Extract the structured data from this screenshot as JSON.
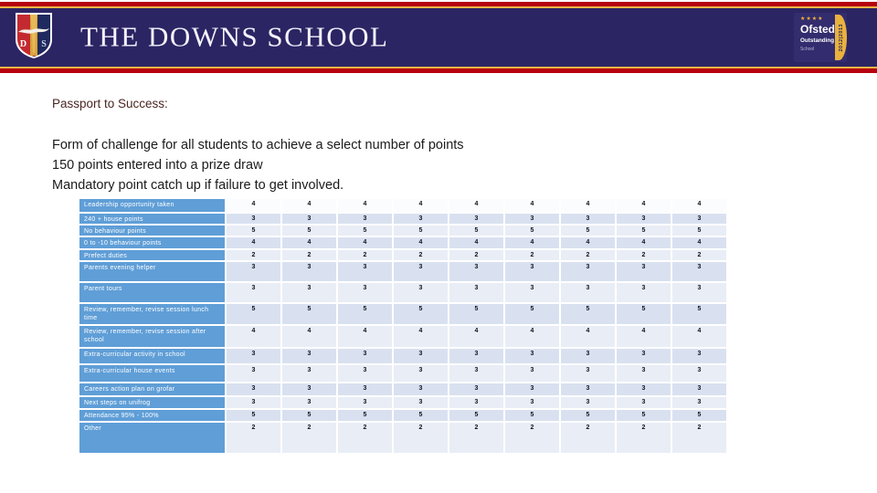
{
  "banner": {
    "school_name": "THE DOWNS SCHOOL",
    "crest": {
      "left_letter": "D",
      "right_letter": "S"
    },
    "ofsted": {
      "stars": "★★★★",
      "line1": "Ofsted",
      "line2": "Outstanding",
      "line3": "School",
      "years": "2012|2013"
    }
  },
  "colors": {
    "banner_navy": "#2b2563",
    "banner_red": "#b6000f",
    "banner_gold": "#e9b545",
    "title_maroon": "#4a2620",
    "table_label_blue": "#5f9ed7",
    "band_dark": "#d9e1f0",
    "band_light": "#e9edf6"
  },
  "content": {
    "title": "Passport to Success:",
    "lines": [
      "Form of challenge for all students to achieve a select number of points",
      "150 points entered into a prize draw",
      "Mandatory point catch up if failure to get involved."
    ]
  },
  "table": {
    "column_count": 9,
    "rows": [
      {
        "label": "Leadership opportunity taken",
        "values": [
          4,
          4,
          4,
          4,
          4,
          4,
          4,
          4,
          4
        ]
      },
      {
        "label": "240 + house points",
        "values": [
          3,
          3,
          3,
          3,
          3,
          3,
          3,
          3,
          3
        ]
      },
      {
        "label": "No behaviour points",
        "values": [
          5,
          5,
          5,
          5,
          5,
          5,
          5,
          5,
          5
        ]
      },
      {
        "label": "0 to -10 behaviour points",
        "values": [
          4,
          4,
          4,
          4,
          4,
          4,
          4,
          4,
          4
        ]
      },
      {
        "label": "Prefect duties",
        "values": [
          2,
          2,
          2,
          2,
          2,
          2,
          2,
          2,
          2
        ]
      },
      {
        "label": "Parents evening helper",
        "values": [
          3,
          3,
          3,
          3,
          3,
          3,
          3,
          3,
          3
        ]
      },
      {
        "label": "Parent tours",
        "values": [
          3,
          3,
          3,
          3,
          3,
          3,
          3,
          3,
          3
        ]
      },
      {
        "label": "Review, remember, revise session lunch time",
        "values": [
          5,
          5,
          5,
          5,
          5,
          5,
          5,
          5,
          5
        ]
      },
      {
        "label": "Review, remember, revise session after school",
        "values": [
          4,
          4,
          4,
          4,
          4,
          4,
          4,
          4,
          4
        ]
      },
      {
        "label": "Extra-curricular activity in school",
        "values": [
          3,
          3,
          3,
          3,
          3,
          3,
          3,
          3,
          3
        ]
      },
      {
        "label": "Extra-curricular house events",
        "values": [
          3,
          3,
          3,
          3,
          3,
          3,
          3,
          3,
          3
        ]
      },
      {
        "label": "Careers action plan on grofar",
        "values": [
          3,
          3,
          3,
          3,
          3,
          3,
          3,
          3,
          3
        ]
      },
      {
        "label": "Next steps on unifrog",
        "values": [
          3,
          3,
          3,
          3,
          3,
          3,
          3,
          3,
          3
        ]
      },
      {
        "label": "Attendance 95% - 100%",
        "values": [
          5,
          5,
          5,
          5,
          5,
          5,
          5,
          5,
          5
        ]
      },
      {
        "label": "Other",
        "values": [
          2,
          2,
          2,
          2,
          2,
          2,
          2,
          2,
          2
        ]
      }
    ]
  }
}
